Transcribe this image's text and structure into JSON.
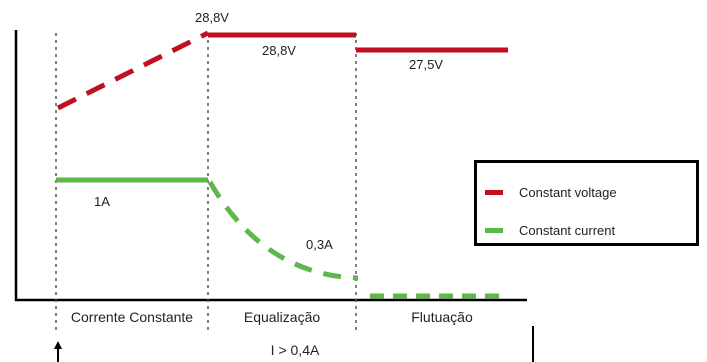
{
  "colors": {
    "voltage": "#c0101f",
    "current": "#5cb84a",
    "axis": "#000000",
    "divider": "#555555"
  },
  "voltage_labels": {
    "peak_top": "28,8V",
    "equalization": "28,8V",
    "float": "27,5V"
  },
  "current_labels": {
    "constant": "1A",
    "taper": "0,3A"
  },
  "phases": {
    "constant_current": "Corrente Constante",
    "equalization": "Equalização",
    "float": "Flutuação"
  },
  "condition": "I > 0,4A",
  "legend": {
    "voltage": "Constant voltage",
    "current": "Constant current"
  }
}
